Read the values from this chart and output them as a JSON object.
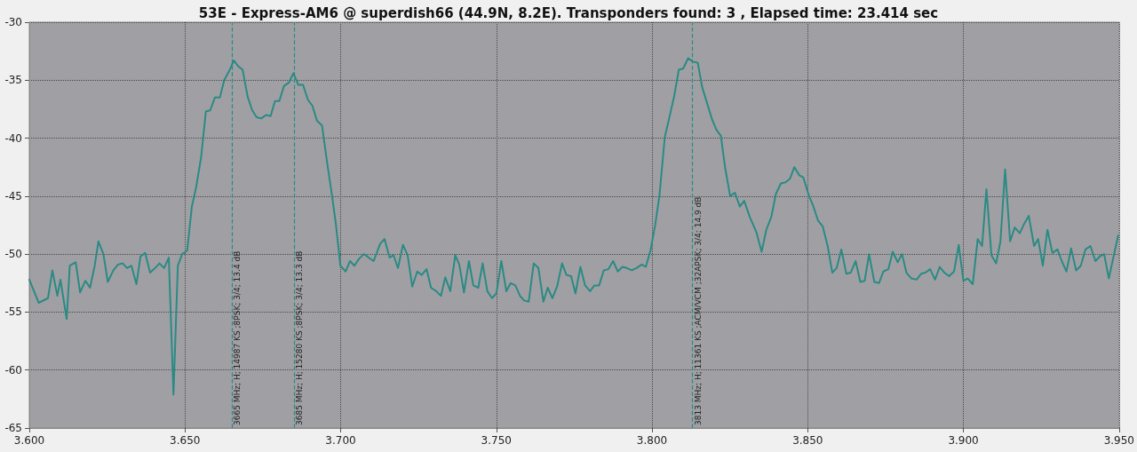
{
  "chart_data": {
    "type": "line",
    "title": "53E - Express-AM6 @ superdish66 (44.9N, 8.2E). Transponders found: 3 , Elapsed time: 23.414 sec",
    "xlim": [
      3.6,
      3.95
    ],
    "xticks": [
      {
        "value": 3.6,
        "label": "3.600"
      },
      {
        "value": 3.65,
        "label": "3.650"
      },
      {
        "value": 3.7,
        "label": "3.700"
      },
      {
        "value": 3.75,
        "label": "3.750"
      },
      {
        "value": 3.8,
        "label": "3.800"
      },
      {
        "value": 3.85,
        "label": "3.850"
      },
      {
        "value": 3.9,
        "label": "3.900"
      },
      {
        "value": 3.95,
        "label": "3.950"
      }
    ],
    "ylim": [
      -65,
      -30
    ],
    "yticks": [
      -65,
      -60,
      -55,
      -50,
      -45,
      -40,
      -35,
      -30
    ],
    "grid": true,
    "marker": "none",
    "line_style": "solid",
    "ref_lines": [
      {
        "axis": "x",
        "value": 3.665,
        "label": "3665 MHz; H; 14987 KS ;8PSK; 3/4; 13.4 dB",
        "color": "#2a8a84",
        "line_style": "dashed"
      },
      {
        "axis": "x",
        "value": 3.685,
        "label": "3685 MHz; H; 15280 KS ;8PSK; 3/4; 13.3 dB",
        "color": "#2a8a84",
        "line_style": "dashed"
      },
      {
        "axis": "x",
        "value": 3.813,
        "label": "3813 MHz; H; 11361 KS ;ACM/VCM ;32APSK; 3/4; 14.9 dB",
        "color": "#2a8a84",
        "line_style": "dashed"
      }
    ],
    "series": [
      {
        "color": "#2a8a84",
        "x": [
          3.6,
          3.603,
          3.606,
          3.6074,
          3.609,
          3.61,
          3.612,
          3.613,
          3.6149,
          3.6163,
          3.618,
          3.6195,
          3.621,
          3.6222,
          3.6238,
          3.6252,
          3.627,
          3.6285,
          3.63,
          3.6314,
          3.6328,
          3.6344,
          3.6357,
          3.6372,
          3.6388,
          3.6404,
          3.6418,
          3.6433,
          3.6448,
          3.6463,
          3.6477,
          3.6491,
          3.6507,
          3.6522,
          3.6536,
          3.6552,
          3.6567,
          3.6581,
          3.6596,
          3.6612,
          3.6626,
          3.6642,
          3.6657,
          3.6671,
          3.6685,
          3.6701,
          3.6716,
          3.673,
          3.6745,
          3.676,
          3.6775,
          3.6789,
          3.6803,
          3.6818,
          3.6834,
          3.6848,
          3.6864,
          3.6879,
          3.6895,
          3.6909,
          3.6924,
          3.694,
          3.6957,
          3.6972,
          3.6985,
          3.6999,
          3.7016,
          3.703,
          3.7044,
          3.7059,
          3.7075,
          3.709,
          3.7106,
          3.7127,
          3.7141,
          3.7157,
          3.717,
          3.7184,
          3.72,
          3.7215,
          3.723,
          3.7246,
          3.726,
          3.7276,
          3.729,
          3.7307,
          3.7322,
          3.7336,
          3.7352,
          3.7368,
          3.7381,
          3.7396,
          3.7412,
          3.7426,
          3.7442,
          3.7456,
          3.7471,
          3.7486,
          3.75,
          3.7516,
          3.7532,
          3.7546,
          3.7561,
          3.7576,
          3.7589,
          3.7604,
          3.762,
          3.7635,
          3.7651,
          3.7665,
          3.768,
          3.7695,
          3.7711,
          3.7725,
          3.774,
          3.7754,
          3.777,
          3.7785,
          3.7801,
          3.7815,
          3.783,
          3.7845,
          3.786,
          3.7875,
          3.789,
          3.7905,
          3.7919,
          3.7935,
          3.795,
          3.7967,
          3.798,
          3.7995,
          3.801,
          3.8024,
          3.8041,
          3.8055,
          3.8071,
          3.8086,
          3.81,
          3.8116,
          3.8131,
          3.8147,
          3.8161,
          3.8177,
          3.8193,
          3.8207,
          3.8221,
          3.8235,
          3.8251,
          3.8266,
          3.8282,
          3.8296,
          3.8314,
          3.8335,
          3.8352,
          3.8367,
          3.8383,
          3.8398,
          3.8414,
          3.8429,
          3.8443,
          3.8457,
          3.8473,
          3.8486,
          3.8503,
          3.8517,
          3.8533,
          3.8548,
          3.8564,
          3.8579,
          3.8593,
          3.8608,
          3.8624,
          3.8638,
          3.8654,
          3.8669,
          3.8683,
          3.8697,
          3.8714,
          3.8729,
          3.8743,
          3.8759,
          3.8773,
          3.8789,
          3.8803,
          3.8817,
          3.8833,
          3.885,
          3.8864,
          3.8878,
          3.8893,
          3.8909,
          3.8924,
          3.8939,
          3.8954,
          3.897,
          3.8985,
          3.9,
          3.9014,
          3.903,
          3.9046,
          3.906,
          3.9074,
          3.909,
          3.9105,
          3.9119,
          3.9134,
          3.915,
          3.9165,
          3.9181,
          3.9195,
          3.921,
          3.9227,
          3.924,
          3.9255,
          3.927,
          3.9286,
          3.9302,
          3.9316,
          3.9331,
          3.9346,
          3.9362,
          3.9377,
          3.9392,
          3.9408,
          3.9424,
          3.9438,
          3.9452,
          3.9467,
          3.9497
        ],
        "values": [
          -52.2,
          -54.2,
          -53.8,
          -51.4,
          -53.6,
          -52.2,
          -55.6,
          -51.0,
          -50.7,
          -53.3,
          -52.3,
          -52.9,
          -51.0,
          -48.9,
          -50.0,
          -52.4,
          -51.4,
          -50.9,
          -50.8,
          -51.2,
          -51.0,
          -52.6,
          -50.2,
          -49.9,
          -51.6,
          -51.2,
          -50.8,
          -51.2,
          -50.3,
          -62.1,
          -51.0,
          -50.0,
          -49.7,
          -45.9,
          -44.2,
          -41.6,
          -37.7,
          -37.6,
          -36.5,
          -36.5,
          -35.0,
          -34.2,
          -33.3,
          -33.8,
          -34.1,
          -36.4,
          -37.6,
          -38.2,
          -38.3,
          -38.0,
          -38.1,
          -36.8,
          -36.8,
          -35.5,
          -35.2,
          -34.4,
          -35.4,
          -35.4,
          -36.7,
          -37.2,
          -38.5,
          -38.9,
          -42.2,
          -44.9,
          -47.5,
          -51.0,
          -51.5,
          -50.6,
          -51.0,
          -50.4,
          -50.0,
          -50.3,
          -50.6,
          -49.1,
          -48.7,
          -50.3,
          -50.1,
          -51.2,
          -49.2,
          -50.1,
          -52.8,
          -51.5,
          -51.8,
          -51.3,
          -52.9,
          -53.2,
          -53.6,
          -52.0,
          -53.2,
          -50.1,
          -50.9,
          -53.3,
          -50.6,
          -52.7,
          -52.9,
          -50.8,
          -53.2,
          -53.8,
          -53.4,
          -50.6,
          -53.2,
          -52.5,
          -52.7,
          -53.6,
          -54.0,
          -54.1,
          -50.8,
          -51.2,
          -54.1,
          -52.9,
          -53.8,
          -52.8,
          -50.8,
          -51.8,
          -51.9,
          -53.4,
          -51.1,
          -52.7,
          -53.2,
          -52.7,
          -52.7,
          -51.4,
          -51.3,
          -50.6,
          -51.5,
          -51.1,
          -51.2,
          -51.4,
          -51.2,
          -50.9,
          -51.1,
          -49.7,
          -47.5,
          -44.9,
          -39.9,
          -38.3,
          -36.4,
          -34.1,
          -34.0,
          -33.1,
          -33.4,
          -33.5,
          -35.6,
          -37.0,
          -38.4,
          -39.3,
          -39.8,
          -42.6,
          -45.0,
          -44.7,
          -45.9,
          -45.4,
          -46.8,
          -48.1,
          -49.8,
          -47.9,
          -46.8,
          -44.8,
          -43.9,
          -43.8,
          -43.5,
          -42.5,
          -43.2,
          -43.4,
          -44.9,
          -45.8,
          -47.1,
          -47.6,
          -49.3,
          -51.6,
          -51.2,
          -49.6,
          -51.7,
          -51.6,
          -50.6,
          -52.4,
          -52.3,
          -50.0,
          -52.4,
          -52.5,
          -51.5,
          -51.3,
          -49.8,
          -50.7,
          -50.0,
          -51.6,
          -52.1,
          -52.2,
          -51.7,
          -51.6,
          -51.3,
          -52.2,
          -51.1,
          -51.6,
          -51.9,
          -51.5,
          -49.2,
          -52.3,
          -52.1,
          -52.6,
          -48.7,
          -49.3,
          -44.4,
          -50.1,
          -50.8,
          -48.9,
          -42.7,
          -48.9,
          -47.7,
          -48.2,
          -47.4,
          -46.7,
          -49.3,
          -48.7,
          -51.0,
          -47.9,
          -49.9,
          -49.6,
          -50.6,
          -51.5,
          -49.5,
          -51.4,
          -51.0,
          -49.6,
          -49.3,
          -50.6,
          -50.2,
          -50.0,
          -52.1,
          -48.4
        ]
      }
    ]
  }
}
